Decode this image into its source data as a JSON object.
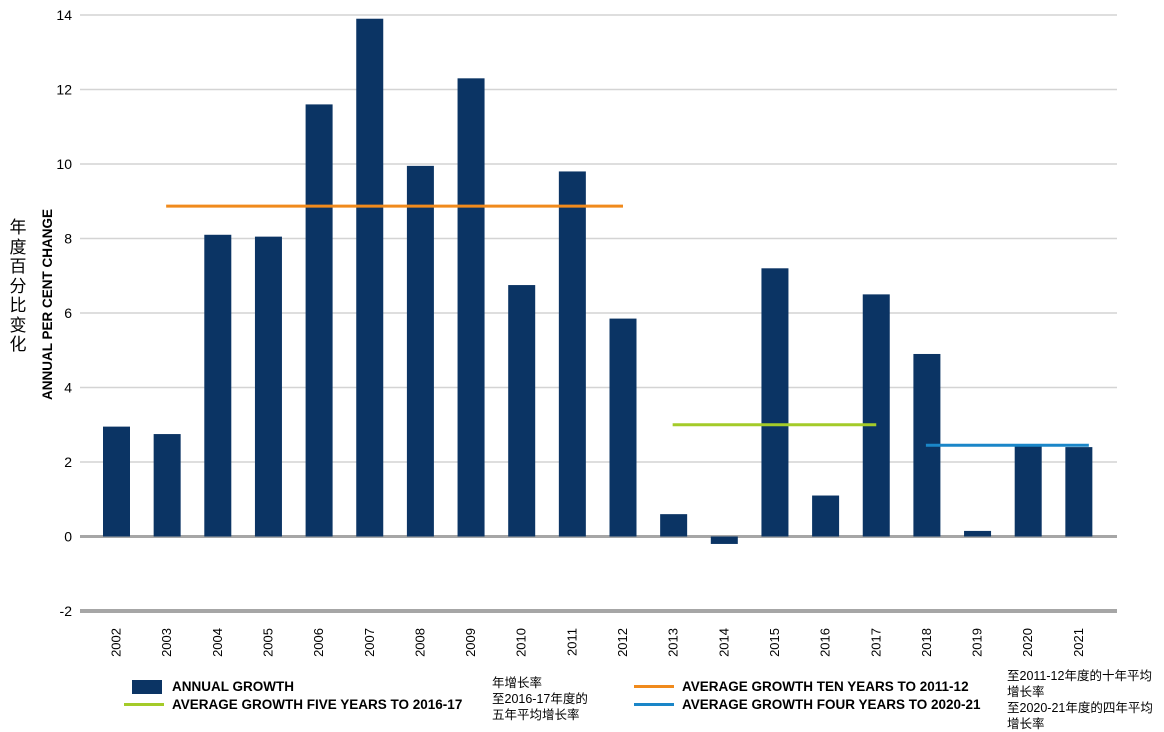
{
  "chart_data": {
    "type": "bar",
    "title": "",
    "xlabel": "",
    "ylabel_cn": [
      "年",
      "度",
      "百",
      "分",
      "比",
      "变",
      "化"
    ],
    "ylabel_en": "ANNUAL PER CENT CHANGE",
    "categories": [
      "2002",
      "2003",
      "2004",
      "2005",
      "2006",
      "2007",
      "2008",
      "2009",
      "2010",
      "2011",
      "2012",
      "2013",
      "2014",
      "2015",
      "2016",
      "2017",
      "2018",
      "2019",
      "2020",
      "2021"
    ],
    "series": [
      {
        "name": "ANNUAL GROWTH",
        "color": "#0b3464",
        "values": [
          2.95,
          2.75,
          8.1,
          8.05,
          11.6,
          13.9,
          9.95,
          12.3,
          6.75,
          9.8,
          5.85,
          0.6,
          -0.2,
          7.2,
          1.1,
          6.5,
          4.9,
          0.15,
          2.45,
          2.4
        ]
      }
    ],
    "averages": [
      {
        "name": "AVERAGE GROWTH TEN YEARS TO 2011-12",
        "color": "#f08a1c",
        "value": 8.87,
        "from": "2003",
        "to": "2012"
      },
      {
        "name": "AVERAGE GROWTH FIVE YEARS TO 2016-17",
        "color": "#a4cb29",
        "value": 3.0,
        "from": "2013",
        "to": "2017"
      },
      {
        "name": "AVERAGE GROWTH FOUR YEARS TO 2020-21",
        "color": "#1a86c8",
        "value": 2.45,
        "from": "2018",
        "to": "2021"
      }
    ],
    "yticks": [
      -2,
      0,
      2,
      4,
      6,
      8,
      10,
      12,
      14
    ],
    "ylim": [
      -2,
      14
    ],
    "grid": true,
    "legend_position": "bottom"
  },
  "legend": {
    "annual": "ANNUAL GROWTH",
    "five": "AVERAGE GROWTH FIVE YEARS TO 2016-17",
    "ten": "AVERAGE GROWTH TEN YEARS TO 2011-12",
    "four": "AVERAGE GROWTH FOUR YEARS TO 2020-21",
    "cn_annual_five_1": "年增长率",
    "cn_annual_five_2": "至2016-17年度的",
    "cn_annual_five_3": "五年平均增长率",
    "cn_ten_1": "至2011-12年度的十年平均",
    "cn_ten_2": "增长率",
    "cn_four_1": "至2020-21年度的四年平均",
    "cn_four_2": "增长率"
  }
}
